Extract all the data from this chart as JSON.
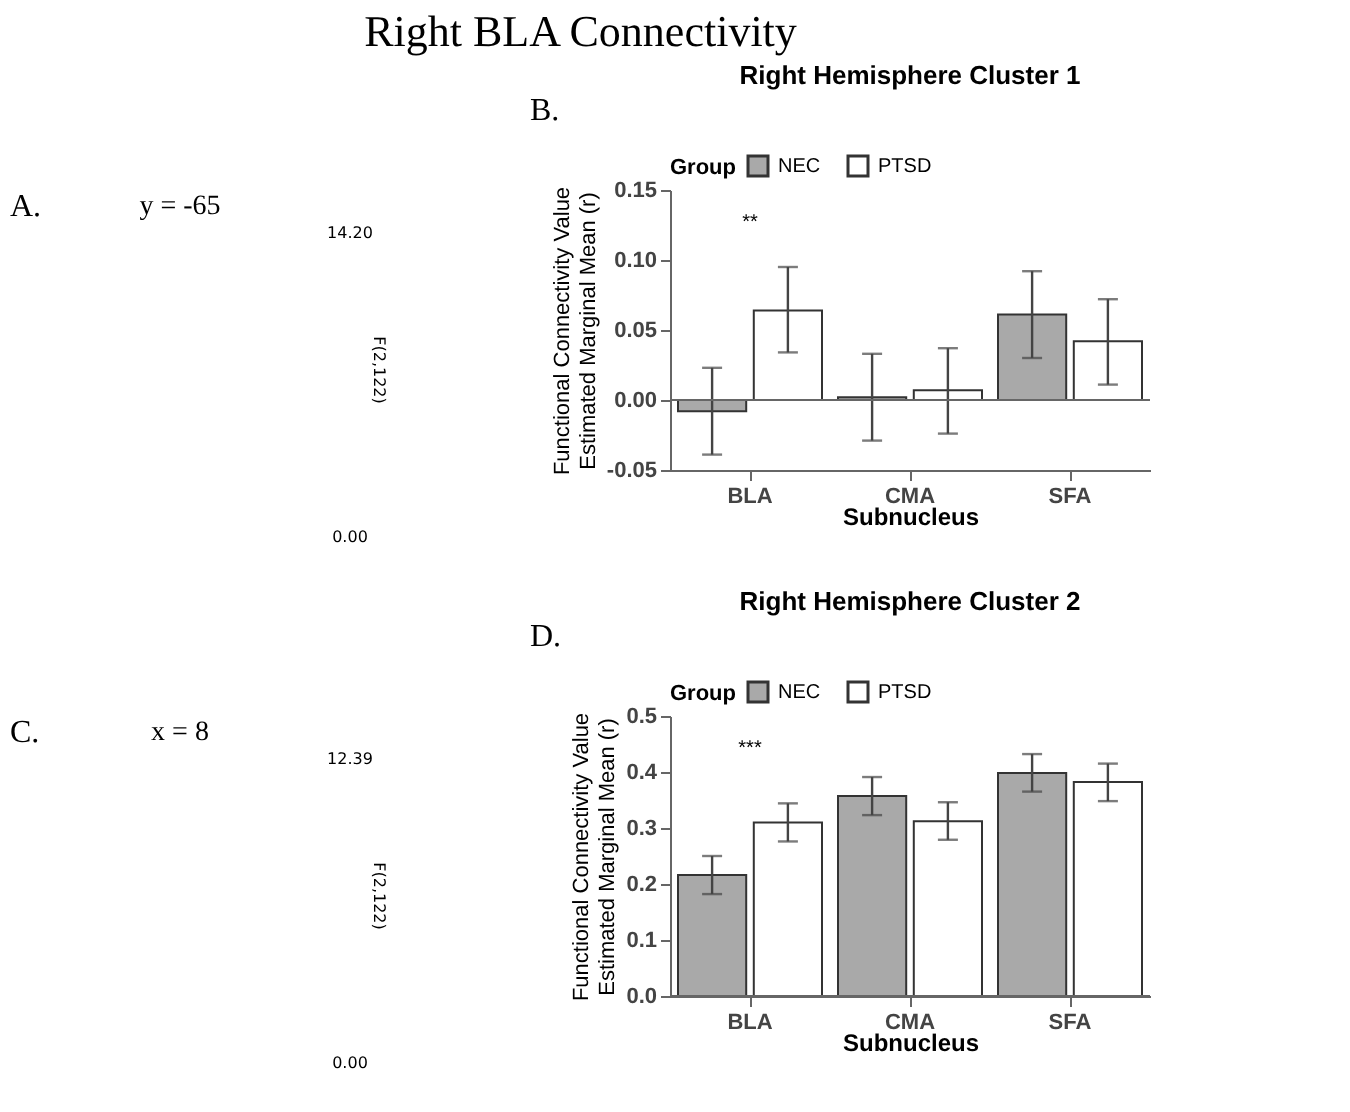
{
  "chart_data": [
    {
      "type": "other",
      "title": "Right BLA Connectivity",
      "subtitle": "y = -65",
      "annotations": [
        "A.",
        "14.20",
        "0.00",
        "F(2,122)"
      ]
    },
    {
      "type": "bar",
      "title": "Right Hemisphere Cluster 1",
      "xlabel": "Subnucleus",
      "ylabel": "Functional Connectivity Value\nEstimated Marginal Mean (r)",
      "legend_title": "Group",
      "legend": "top",
      "categories": [
        "BLA",
        "CMA",
        "SFA"
      ],
      "series": [
        {
          "name": "NEC",
          "color": "#a9a9a9",
          "values": [
            -0.008,
            0.002,
            0.061
          ],
          "errors": [
            [
              -0.039,
              0.023
            ],
            [
              -0.029,
              0.033
            ],
            [
              0.03,
              0.092
            ]
          ]
        },
        {
          "name": "PTSD",
          "color": "#ffffff",
          "values": [
            0.064,
            0.007,
            0.042
          ],
          "errors": [
            [
              0.034,
              0.095
            ],
            [
              -0.024,
              0.037
            ],
            [
              0.011,
              0.072
            ]
          ]
        }
      ],
      "ylim": [
        -0.05,
        0.15
      ],
      "yticks": [
        {
          "value": -0.05,
          "label": "-0.05"
        },
        {
          "value": 0,
          "label": "0.00"
        },
        {
          "value": 0.05,
          "label": "0.05"
        },
        {
          "value": 0.1,
          "label": "0.10"
        },
        {
          "value": 0.15,
          "label": "0.15"
        }
      ],
      "annotations": [
        "B.",
        "**"
      ]
    },
    {
      "type": "other",
      "subtitle": "x = 8",
      "annotations": [
        "C.",
        "12.39",
        "0.00",
        "F(2,122)"
      ]
    },
    {
      "type": "bar",
      "title": "Right Hemisphere Cluster 2",
      "xlabel": "Subnucleus",
      "ylabel": "Functional Connectivity Value\nEstimated Marginal Mean (r)",
      "legend_title": "Group",
      "legend": "top",
      "categories": [
        "BLA",
        "CMA",
        "SFA"
      ],
      "series": [
        {
          "name": "NEC",
          "color": "#a9a9a9",
          "values": [
            0.216,
            0.357,
            0.398
          ],
          "errors": [
            [
              0.182,
              0.25
            ],
            [
              0.323,
              0.391
            ],
            [
              0.365,
              0.432
            ]
          ]
        },
        {
          "name": "PTSD",
          "color": "#ffffff",
          "values": [
            0.31,
            0.312,
            0.382
          ],
          "errors": [
            [
              0.276,
              0.344
            ],
            [
              0.279,
              0.346
            ],
            [
              0.348,
              0.415
            ]
          ]
        }
      ],
      "ylim": [
        0,
        0.5
      ],
      "yticks": [
        {
          "value": 0,
          "label": "0.0"
        },
        0.1,
        0.2,
        0.3,
        0.4,
        0.5
      ],
      "annotations": [
        "D.",
        "***"
      ]
    }
  ]
}
